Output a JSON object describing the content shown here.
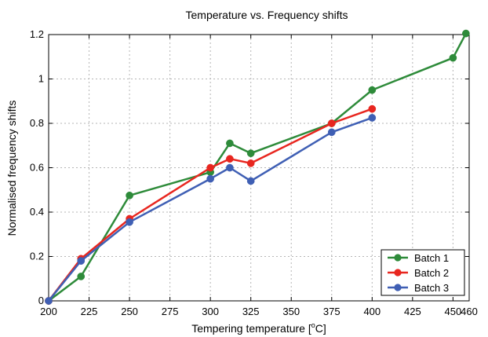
{
  "chart_data": {
    "type": "line",
    "title": "Temperature vs. Frequency shifts",
    "xlabel": "Tempering temperature [",
    "xlabel_unit_sup": "o",
    "xlabel_unit": "C]",
    "ylabel": "Normalised frequency shifts",
    "xlim": [
      200,
      460
    ],
    "ylim": [
      0,
      1.2
    ],
    "xticks": [
      200,
      225,
      250,
      275,
      300,
      325,
      350,
      375,
      400,
      425,
      450,
      460
    ],
    "yticks": [
      0,
      0.2,
      0.4,
      0.6,
      0.8,
      1,
      1.2
    ],
    "xtick_labels": [
      "200",
      "225",
      "250",
      "275",
      "300",
      "325",
      "350",
      "375",
      "400",
      "425",
      "450",
      "460"
    ],
    "ytick_labels": [
      "0",
      "0.2",
      "0.4",
      "0.6",
      "0.8",
      "1",
      "1.2"
    ],
    "grid": true,
    "legend_position": "bottom-right",
    "series": [
      {
        "name": "Batch 1",
        "color": "#2e8b3a",
        "points": [
          [
            200,
            0
          ],
          [
            220,
            0.11
          ],
          [
            250,
            0.475
          ],
          [
            300,
            0.58
          ],
          [
            312,
            0.71
          ],
          [
            325,
            0.665
          ],
          [
            375,
            0.8
          ],
          [
            400,
            0.95
          ],
          [
            450,
            1.095
          ],
          [
            458,
            1.205
          ]
        ]
      },
      {
        "name": "Batch 2",
        "color": "#e8261f",
        "points": [
          [
            200,
            0
          ],
          [
            220,
            0.19
          ],
          [
            250,
            0.37
          ],
          [
            300,
            0.6
          ],
          [
            312,
            0.64
          ],
          [
            325,
            0.62
          ],
          [
            375,
            0.8
          ],
          [
            400,
            0.865
          ]
        ]
      },
      {
        "name": "Batch 3",
        "color": "#3f5fb4",
        "points": [
          [
            200,
            0
          ],
          [
            220,
            0.18
          ],
          [
            250,
            0.355
          ],
          [
            300,
            0.55
          ],
          [
            312,
            0.6
          ],
          [
            325,
            0.54
          ],
          [
            375,
            0.76
          ],
          [
            400,
            0.825
          ]
        ]
      }
    ]
  }
}
